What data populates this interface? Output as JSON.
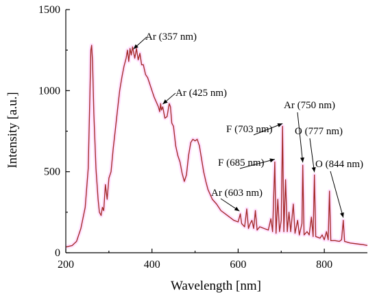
{
  "chart_data": {
    "type": "line",
    "xlabel": "Wavelength [nm]",
    "ylabel": "Intensity [a.u.]",
    "xlim": [
      200,
      900
    ],
    "ylim": [
      0,
      1500
    ],
    "x_ticks": [
      200,
      400,
      600,
      800
    ],
    "y_ticks": [
      0,
      500,
      1000,
      1500
    ],
    "grid": false,
    "series": [
      {
        "color": "#a52a2a",
        "points": [
          [
            200,
            35
          ],
          [
            215,
            45
          ],
          [
            225,
            70
          ],
          [
            235,
            150
          ],
          [
            245,
            280
          ],
          [
            252,
            520
          ],
          [
            256,
            980
          ],
          [
            258,
            1250
          ],
          [
            260,
            1280
          ],
          [
            262,
            1180
          ],
          [
            265,
            860
          ],
          [
            270,
            520
          ],
          [
            275,
            330
          ],
          [
            278,
            250
          ],
          [
            282,
            230
          ],
          [
            285,
            280
          ],
          [
            288,
            260
          ],
          [
            292,
            420
          ],
          [
            296,
            330
          ],
          [
            300,
            460
          ],
          [
            305,
            500
          ],
          [
            310,
            640
          ],
          [
            315,
            760
          ],
          [
            320,
            880
          ],
          [
            325,
            1000
          ],
          [
            330,
            1080
          ],
          [
            335,
            1150
          ],
          [
            340,
            1200
          ],
          [
            343,
            1250
          ],
          [
            346,
            1180
          ],
          [
            349,
            1260
          ],
          [
            352,
            1220
          ],
          [
            355,
            1270
          ],
          [
            357,
            1240
          ],
          [
            360,
            1200
          ],
          [
            364,
            1260
          ],
          [
            368,
            1190
          ],
          [
            372,
            1230
          ],
          [
            376,
            1160
          ],
          [
            380,
            1160
          ],
          [
            385,
            1100
          ],
          [
            390,
            1080
          ],
          [
            395,
            1040
          ],
          [
            400,
            1000
          ],
          [
            405,
            960
          ],
          [
            410,
            930
          ],
          [
            415,
            900
          ],
          [
            418,
            870
          ],
          [
            420,
            920
          ],
          [
            422,
            880
          ],
          [
            425,
            900
          ],
          [
            430,
            830
          ],
          [
            435,
            840
          ],
          [
            440,
            920
          ],
          [
            443,
            900
          ],
          [
            446,
            800
          ],
          [
            450,
            780
          ],
          [
            455,
            660
          ],
          [
            460,
            600
          ],
          [
            465,
            560
          ],
          [
            470,
            490
          ],
          [
            475,
            440
          ],
          [
            480,
            480
          ],
          [
            485,
            600
          ],
          [
            490,
            680
          ],
          [
            495,
            700
          ],
          [
            500,
            690
          ],
          [
            505,
            700
          ],
          [
            510,
            660
          ],
          [
            515,
            580
          ],
          [
            520,
            500
          ],
          [
            525,
            440
          ],
          [
            530,
            390
          ],
          [
            540,
            330
          ],
          [
            550,
            300
          ],
          [
            560,
            260
          ],
          [
            570,
            240
          ],
          [
            580,
            220
          ],
          [
            590,
            200
          ],
          [
            600,
            190
          ],
          [
            605,
            240
          ],
          [
            608,
            180
          ],
          [
            615,
            160
          ],
          [
            620,
            270
          ],
          [
            624,
            150
          ],
          [
            628,
            180
          ],
          [
            632,
            200
          ],
          [
            636,
            150
          ],
          [
            640,
            260
          ],
          [
            644,
            140
          ],
          [
            650,
            160
          ],
          [
            660,
            150
          ],
          [
            670,
            140
          ],
          [
            676,
            210
          ],
          [
            680,
            130
          ],
          [
            685,
            560
          ],
          [
            688,
            120
          ],
          [
            692,
            330
          ],
          [
            696,
            130
          ],
          [
            700,
            200
          ],
          [
            703,
            780
          ],
          [
            706,
            130
          ],
          [
            710,
            450
          ],
          [
            714,
            130
          ],
          [
            718,
            250
          ],
          [
            722,
            130
          ],
          [
            728,
            300
          ],
          [
            732,
            120
          ],
          [
            738,
            200
          ],
          [
            742,
            110
          ],
          [
            748,
            180
          ],
          [
            750,
            540
          ],
          [
            753,
            110
          ],
          [
            760,
            130
          ],
          [
            765,
            110
          ],
          [
            770,
            220
          ],
          [
            774,
            100
          ],
          [
            777,
            480
          ],
          [
            780,
            100
          ],
          [
            790,
            90
          ],
          [
            795,
            110
          ],
          [
            800,
            80
          ],
          [
            805,
            130
          ],
          [
            809,
            80
          ],
          [
            812,
            380
          ],
          [
            815,
            75
          ],
          [
            825,
            75
          ],
          [
            835,
            70
          ],
          [
            840,
            80
          ],
          [
            844,
            200
          ],
          [
            847,
            70
          ],
          [
            860,
            60
          ],
          [
            875,
            55
          ],
          [
            890,
            50
          ],
          [
            900,
            45
          ]
        ]
      }
    ],
    "annotations": [
      {
        "text": "Ar (357 nm)",
        "x": 357,
        "y": 1240
      },
      {
        "text": "Ar (425 nm)",
        "x": 425,
        "y": 900
      },
      {
        "text": "Ar (603 nm)",
        "x": 603,
        "y": 240
      },
      {
        "text": "F (685 nm)",
        "x": 685,
        "y": 560
      },
      {
        "text": "F (703 nm)",
        "x": 703,
        "y": 780
      },
      {
        "text": "Ar (750 nm)",
        "x": 750,
        "y": 540
      },
      {
        "text": "O (777 nm)",
        "x": 777,
        "y": 480
      },
      {
        "text": "O (844 nm)",
        "x": 844,
        "y": 200
      }
    ]
  }
}
